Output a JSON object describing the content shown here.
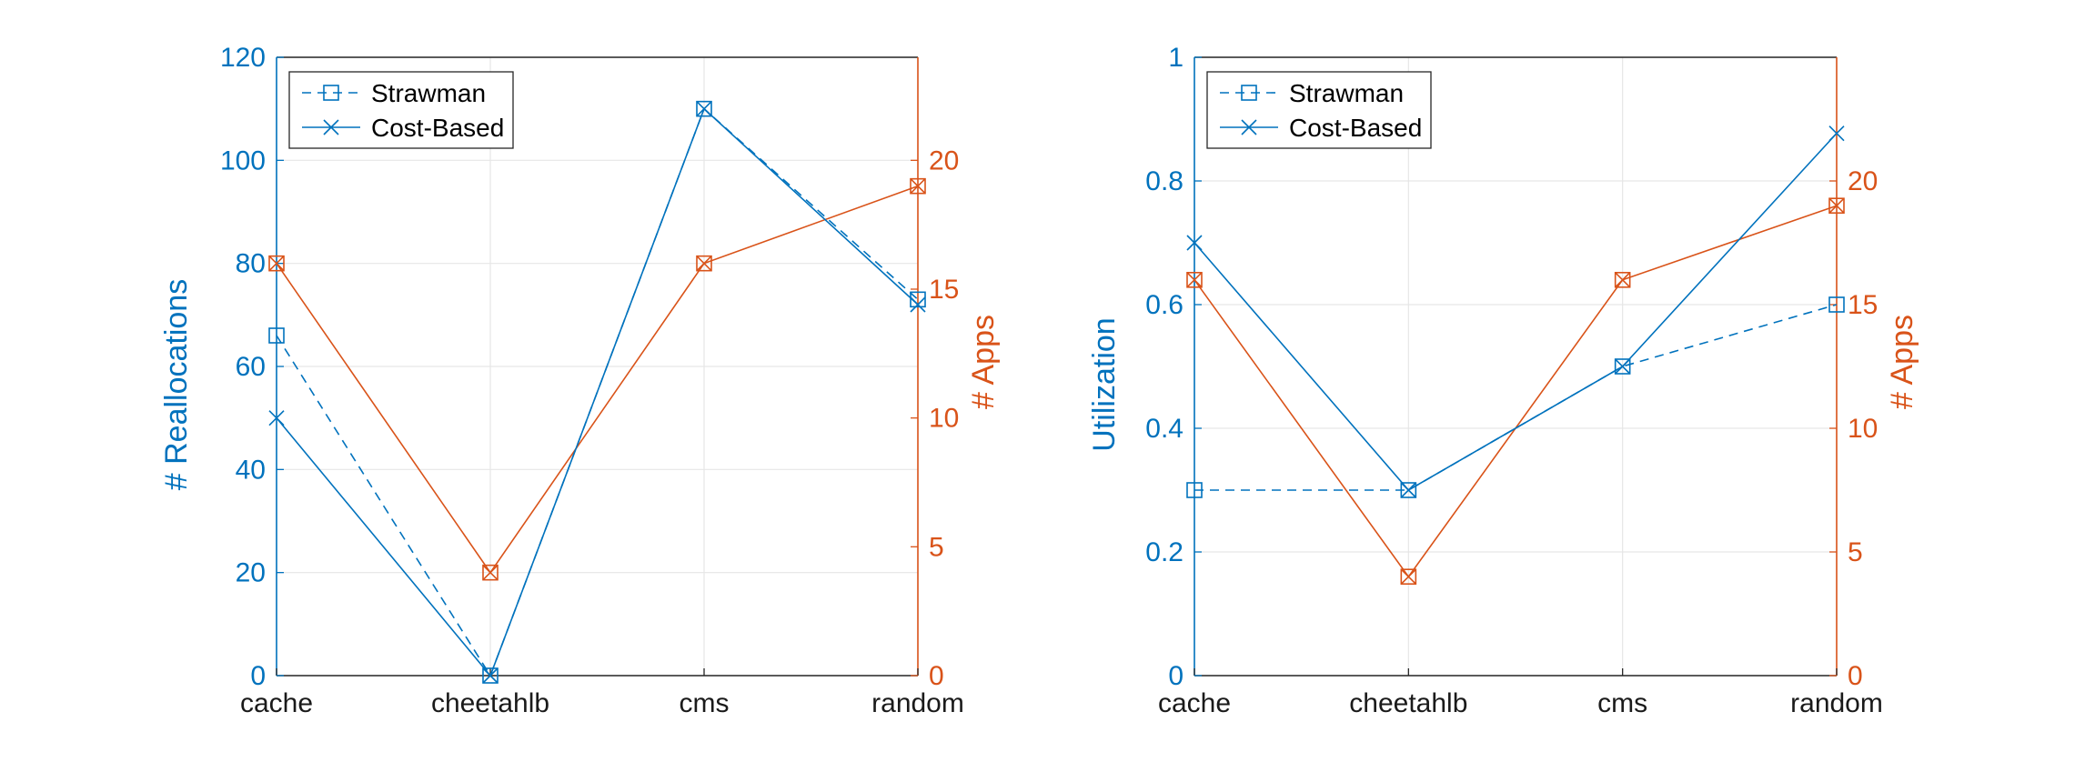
{
  "colors": {
    "left_axis": "#0072BD",
    "right_axis": "#D95319",
    "grid": "#e6e6e6",
    "frame": "#262626"
  },
  "chart_data": [
    {
      "type": "line",
      "categories": [
        "cache",
        "cheetahlb",
        "cms",
        "random"
      ],
      "ylabel": "# Reallocations",
      "ylim": [
        0,
        120
      ],
      "yticks": [
        0,
        20,
        40,
        60,
        80,
        100,
        120
      ],
      "y2label": "# Apps",
      "y2lim": [
        0,
        24
      ],
      "y2ticks": [
        0,
        5,
        10,
        15,
        20
      ],
      "grid": true,
      "legend_position": "top-left",
      "series": [
        {
          "name": "Strawman",
          "axis": "left",
          "style": "dashed",
          "marker": "square",
          "color": "#0072BD",
          "values": [
            66,
            0,
            110,
            73
          ]
        },
        {
          "name": "Cost-Based",
          "axis": "left",
          "style": "solid",
          "marker": "x",
          "color": "#0072BD",
          "values": [
            50,
            0,
            110,
            72
          ]
        },
        {
          "axis": "right",
          "style": "solid",
          "marker": "square-x",
          "color": "#D95319",
          "values": [
            16,
            4,
            16,
            19
          ]
        }
      ]
    },
    {
      "type": "line",
      "categories": [
        "cache",
        "cheetahlb",
        "cms",
        "random"
      ],
      "ylabel": "Utilization",
      "ylim": [
        0,
        1
      ],
      "yticks": [
        0,
        0.2,
        0.4,
        0.6,
        0.8,
        1
      ],
      "y2label": "# Apps",
      "y2lim": [
        0,
        25
      ],
      "y2ticks": [
        0,
        5,
        10,
        15,
        20
      ],
      "grid": true,
      "legend_position": "top-left",
      "series": [
        {
          "name": "Strawman",
          "axis": "left",
          "style": "dashed",
          "marker": "square",
          "color": "#0072BD",
          "values": [
            0.3,
            0.3,
            0.5,
            0.6
          ]
        },
        {
          "name": "Cost-Based",
          "axis": "left",
          "style": "solid",
          "marker": "x",
          "color": "#0072BD",
          "values": [
            0.7,
            0.3,
            0.5,
            0.877
          ]
        },
        {
          "axis": "right",
          "style": "solid",
          "marker": "square-x",
          "color": "#D95319",
          "values": [
            16,
            4,
            16,
            19
          ]
        }
      ]
    }
  ]
}
